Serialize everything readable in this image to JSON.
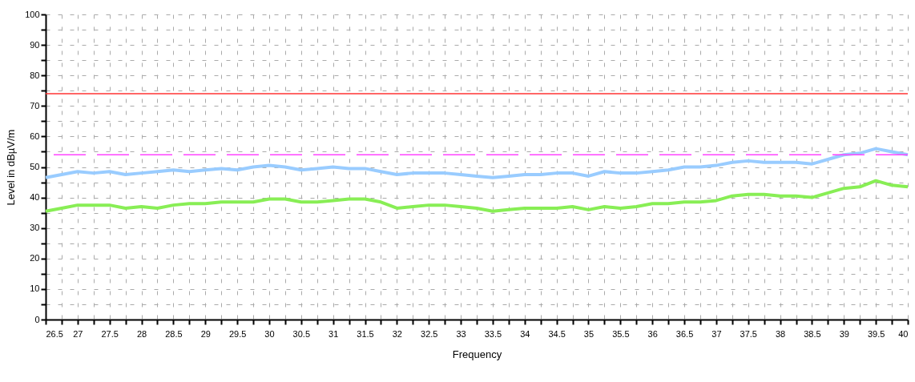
{
  "chart_data": {
    "type": "line",
    "xlabel": "Frequency",
    "ylabel": "Level in dBµV/m",
    "x": [
      26.5,
      26.75,
      27,
      27.25,
      27.5,
      27.75,
      28,
      28.25,
      28.5,
      28.75,
      29,
      29.25,
      29.5,
      29.75,
      30,
      30.25,
      30.5,
      30.75,
      31,
      31.25,
      31.5,
      31.75,
      32,
      32.25,
      32.5,
      32.75,
      33,
      33.25,
      33.5,
      33.75,
      34,
      34.25,
      34.5,
      34.75,
      35,
      35.25,
      35.5,
      35.75,
      36,
      36.25,
      36.5,
      36.75,
      37,
      37.25,
      37.5,
      37.75,
      38,
      38.25,
      38.5,
      38.75,
      39,
      39.25,
      39.5,
      39.75,
      40
    ],
    "series": [
      {
        "color": "#99ccff",
        "values": [
          46.5,
          47.5,
          48.5,
          48,
          48.5,
          47.5,
          48,
          48.5,
          49,
          48.5,
          49,
          49.5,
          49,
          50,
          50.5,
          50,
          49,
          49.5,
          50,
          49.5,
          49.5,
          48.5,
          47.5,
          48,
          48,
          48,
          47.5,
          47,
          46.5,
          47,
          47.5,
          47.5,
          48,
          48,
          47,
          48.5,
          48,
          48,
          48.5,
          49,
          50,
          50,
          50.5,
          51.5,
          52,
          51.5,
          51.5,
          51.5,
          51,
          52.5,
          54,
          54.5,
          56,
          55,
          54
        ]
      },
      {
        "color": "#88ee55",
        "values": [
          35.5,
          36.5,
          37.5,
          37.5,
          37.5,
          36.5,
          37,
          36.5,
          37.5,
          38,
          38,
          38.5,
          38.5,
          38.5,
          39.5,
          39.5,
          38.5,
          38.5,
          39,
          39.5,
          39.5,
          38.5,
          36.5,
          37,
          37.5,
          37.5,
          37,
          36.5,
          35.5,
          36,
          36.5,
          36.5,
          36.5,
          37,
          36,
          37,
          36.5,
          37,
          38,
          38,
          38.5,
          38.5,
          39,
          40.5,
          41,
          41,
          40.5,
          40.5,
          40,
          41.5,
          43,
          43.5,
          45.5,
          44,
          43.5
        ]
      }
    ],
    "xlim": [
      26.5,
      40
    ],
    "xticks": [
      26.5,
      {
        "value": 26.75,
        "label": null
      },
      27,
      {
        "value": 27.25,
        "label": null
      },
      27.5,
      {
        "value": 27.75,
        "label": null
      },
      28,
      {
        "value": 28.25,
        "label": null
      },
      28.5,
      {
        "value": 28.75,
        "label": null
      },
      29,
      {
        "value": 29.25,
        "label": null
      },
      29.5,
      {
        "value": 29.75,
        "label": null
      },
      30,
      {
        "value": 30.25,
        "label": null
      },
      30.5,
      {
        "value": 30.75,
        "label": null
      },
      31,
      {
        "value": 31.25,
        "label": null
      },
      31.5,
      {
        "value": 31.75,
        "label": null
      },
      32,
      {
        "value": 32.25,
        "label": null
      },
      32.5,
      {
        "value": 32.75,
        "label": null
      },
      33,
      {
        "value": 33.25,
        "label": null
      },
      33.5,
      {
        "value": 33.75,
        "label": null
      },
      34,
      {
        "value": 34.25,
        "label": null
      },
      34.5,
      {
        "value": 34.75,
        "label": null
      },
      35,
      {
        "value": 35.25,
        "label": null
      },
      35.5,
      {
        "value": 35.75,
        "label": null
      },
      36,
      {
        "value": 36.25,
        "label": null
      },
      36.5,
      {
        "value": 36.75,
        "label": null
      },
      37,
      {
        "value": 37.25,
        "label": null
      },
      37.5,
      {
        "value": 37.75,
        "label": null
      },
      38,
      {
        "value": 38.25,
        "label": null
      },
      38.5,
      {
        "value": 38.75,
        "label": null
      },
      39,
      {
        "value": 39.25,
        "label": null
      },
      39.5,
      {
        "value": 39.75,
        "label": null
      },
      40
    ],
    "ylim": [
      0,
      100
    ],
    "yticks": [
      0,
      {
        "value": 5,
        "label": null
      },
      10,
      {
        "value": 15,
        "label": null
      },
      20,
      {
        "value": 25,
        "label": null
      },
      30,
      {
        "value": 35,
        "label": null
      },
      40,
      {
        "value": 45,
        "label": null
      },
      50,
      {
        "value": 55,
        "label": null
      },
      60,
      {
        "value": 65,
        "label": null
      },
      70,
      {
        "value": 75,
        "label": null
      },
      80,
      {
        "value": 85,
        "label": null
      },
      90,
      {
        "value": 95,
        "label": null
      },
      100
    ],
    "grid": true,
    "line_style": "solid",
    "marker": "none",
    "ref_lines": [
      {
        "axis": "y",
        "value": 74,
        "color": "#ff3333",
        "line_style": "solid"
      },
      {
        "axis": "y",
        "value": 54,
        "color": "#ff44ff",
        "line_style": "dashed"
      }
    ]
  }
}
